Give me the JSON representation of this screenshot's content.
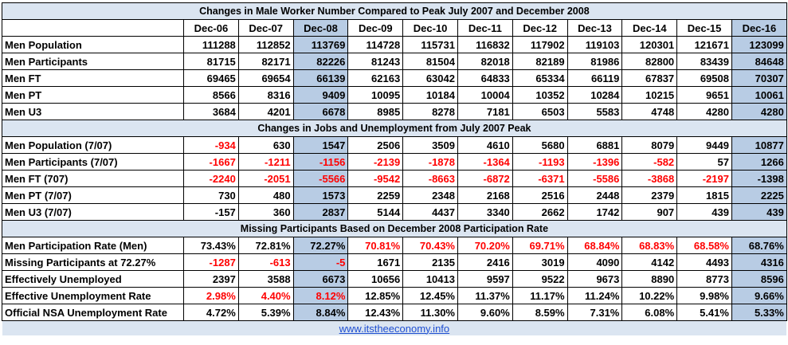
{
  "chart_data": {
    "type": "table",
    "title": "Changes in Male Worker Number Compared to Peak July 2007 and December 2008",
    "columns": [
      "Dec-06",
      "Dec-07",
      "Dec-08",
      "Dec-09",
      "Dec-10",
      "Dec-11",
      "Dec-12",
      "Dec-13",
      "Dec-14",
      "Dec-15",
      "Dec-16"
    ],
    "highlight_colors": {
      "banner": "#dbe5f1",
      "highlight_column": "#b8cce4",
      "negative_text": "#ff0000"
    },
    "sections": [
      {
        "title": "",
        "rows": [
          {
            "label": "Men Population",
            "values": [
              "111288",
              "112852",
              "113769",
              "114728",
              "115731",
              "116832",
              "117902",
              "119103",
              "120301",
              "121671",
              "123099"
            ],
            "red": []
          },
          {
            "label": "Men Participants",
            "values": [
              "81715",
              "82171",
              "82226",
              "81243",
              "81504",
              "82018",
              "82189",
              "81986",
              "82800",
              "83439",
              "84648"
            ],
            "red": []
          },
          {
            "label": "Men FT",
            "values": [
              "69465",
              "69654",
              "66139",
              "62163",
              "63042",
              "64833",
              "65334",
              "66119",
              "67837",
              "69508",
              "70307"
            ],
            "red": []
          },
          {
            "label": "Men PT",
            "values": [
              "8566",
              "8316",
              "9409",
              "10095",
              "10184",
              "10004",
              "10352",
              "10284",
              "10215",
              "9651",
              "10061"
            ],
            "red": []
          },
          {
            "label": "Men U3",
            "values": [
              "3684",
              "4201",
              "6678",
              "8985",
              "8278",
              "7181",
              "6503",
              "5583",
              "4748",
              "4280",
              "4280"
            ],
            "red": []
          }
        ]
      },
      {
        "title": "Changes in Jobs and Unemployment from July 2007 Peak",
        "rows": [
          {
            "label": "Men Population (7/07)",
            "values": [
              "-934",
              "630",
              "1547",
              "2506",
              "3509",
              "4610",
              "5680",
              "6881",
              "8079",
              "9449",
              "10877"
            ],
            "red": [
              0
            ]
          },
          {
            "label": "Men Participants (7/07)",
            "values": [
              "-1667",
              "-1211",
              "-1156",
              "-2139",
              "-1878",
              "-1364",
              "-1193",
              "-1396",
              "-582",
              "57",
              "1266"
            ],
            "red": [
              0,
              1,
              2,
              3,
              4,
              5,
              6,
              7,
              8
            ]
          },
          {
            "label": "Men FT (707)",
            "values": [
              "-2240",
              "-2051",
              "-5566",
              "-9542",
              "-8663",
              "-6872",
              "-6371",
              "-5586",
              "-3868",
              "-2197",
              "-1398"
            ],
            "red": [
              0,
              1,
              2,
              3,
              4,
              5,
              6,
              7,
              8,
              9
            ]
          },
          {
            "label": "Men PT (7/07)",
            "values": [
              "730",
              "480",
              "1573",
              "2259",
              "2348",
              "2168",
              "2516",
              "2448",
              "2379",
              "1815",
              "2225"
            ],
            "red": []
          },
          {
            "label": "Men U3 (7/07)",
            "values": [
              "-157",
              "360",
              "2837",
              "5144",
              "4437",
              "3340",
              "2662",
              "1742",
              "907",
              "439",
              "439"
            ],
            "red": []
          }
        ]
      },
      {
        "title": "Missing Participants Based on December 2008 Participation Rate",
        "rows": [
          {
            "label": "Men Participation Rate (Men)",
            "values": [
              "73.43%",
              "72.81%",
              "72.27%",
              "70.81%",
              "70.43%",
              "70.20%",
              "69.71%",
              "68.84%",
              "68.83%",
              "68.58%",
              "68.76%"
            ],
            "red": [
              3,
              4,
              5,
              6,
              7,
              8,
              9
            ]
          },
          {
            "label": "Missing Participants at 72.27%",
            "values": [
              "-1287",
              "-613",
              "-5",
              "1671",
              "2135",
              "2416",
              "3019",
              "4090",
              "4142",
              "4493",
              "4316"
            ],
            "red": [
              0,
              1,
              2
            ]
          },
          {
            "label": "Effectively Unemployed",
            "values": [
              "2397",
              "3588",
              "6673",
              "10656",
              "10413",
              "9597",
              "9522",
              "9673",
              "8890",
              "8773",
              "8596"
            ],
            "red": []
          },
          {
            "label": "Effective Unemployment Rate",
            "values": [
              "2.98%",
              "4.40%",
              "8.12%",
              "12.85%",
              "12.45%",
              "11.37%",
              "11.17%",
              "11.24%",
              "10.22%",
              "9.98%",
              "9.66%"
            ],
            "red": [
              0,
              1,
              2
            ]
          },
          {
            "label": "Official NSA Unemployment Rate",
            "values": [
              "4.72%",
              "5.39%",
              "8.84%",
              "12.43%",
              "11.30%",
              "9.60%",
              "8.59%",
              "7.31%",
              "6.08%",
              "5.41%",
              "5.33%"
            ],
            "red": []
          }
        ]
      }
    ],
    "highlight_columns": [
      2,
      10
    ],
    "footer": "www.itstheeconomy.info"
  }
}
